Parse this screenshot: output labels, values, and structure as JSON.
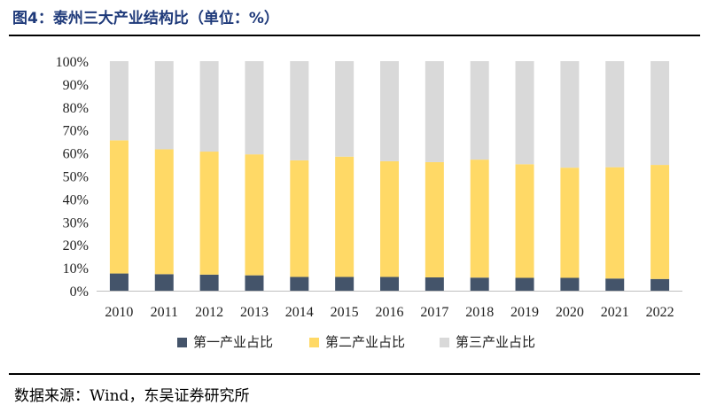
{
  "header": {
    "title": "图4：泰州三大产业结构比（单位：%）"
  },
  "footer": {
    "source": "数据来源：Wind，东吴证券研究所"
  },
  "chart_data": {
    "type": "bar",
    "stacked": true,
    "categories": [
      "2010",
      "2011",
      "2012",
      "2013",
      "2014",
      "2015",
      "2016",
      "2017",
      "2018",
      "2019",
      "2020",
      "2021",
      "2022"
    ],
    "series": [
      {
        "name": "第一产业占比",
        "color": "#44546a",
        "values": [
          7.5,
          7.2,
          7.0,
          6.7,
          6.0,
          6.0,
          6.0,
          5.8,
          5.7,
          5.6,
          5.6,
          5.3,
          5.1
        ]
      },
      {
        "name": "第二产业占比",
        "color": "#ffd966",
        "values": [
          58.0,
          54.4,
          53.6,
          52.7,
          50.8,
          52.4,
          50.4,
          50.2,
          51.4,
          49.5,
          48.0,
          48.5,
          49.7
        ]
      },
      {
        "name": "第三产业占比",
        "color": "#d9d9d9",
        "values": [
          34.5,
          38.4,
          39.4,
          40.6,
          43.2,
          41.6,
          43.6,
          44.0,
          42.9,
          44.9,
          46.4,
          46.2,
          45.2
        ]
      }
    ],
    "ylim": [
      0,
      100
    ],
    "yticks": [
      "0%",
      "10%",
      "20%",
      "30%",
      "40%",
      "50%",
      "60%",
      "70%",
      "80%",
      "90%",
      "100%"
    ],
    "grid": false,
    "legend_position": "bottom"
  }
}
